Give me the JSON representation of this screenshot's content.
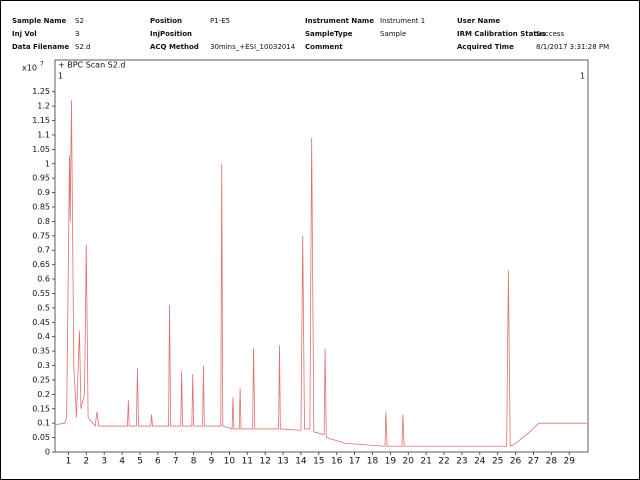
{
  "header": {
    "fields": [
      {
        "label": "Sample Name",
        "value": "S2"
      },
      {
        "label": "Position",
        "value": "P1-E5"
      },
      {
        "label": "Instrument Name",
        "value": "Instrument 1"
      },
      {
        "label": "User Name"
      },
      {
        "label": "Inj Vol",
        "value": "3"
      },
      {
        "label": "InjPosition"
      },
      {
        "label": "SampleType",
        "value": "Sample"
      },
      {
        "label": "IRM Calibration Status",
        "value": "Success"
      },
      {
        "label": "Data Filename",
        "value": "S2.d"
      },
      {
        "label": "ACQ Method",
        "value": "30mins_+ESI_10032014"
      },
      {
        "label": "Comment"
      },
      {
        "label": "Acquired Time",
        "value": "8/1/2017 3:31:28 PM"
      }
    ]
  },
  "chart_data": {
    "type": "line",
    "title": "+ BPC Scan S2.d",
    "ylabel": "x10",
    "ylabel_exponent": "7",
    "annotations": [
      "1",
      "1"
    ],
    "color": "#e07070",
    "x": [
      0.3,
      0.8,
      0.9,
      1.0,
      1.06,
      1.1,
      1.17,
      1.3,
      1.45,
      1.55,
      1.62,
      1.7,
      1.9,
      2.0,
      2.1,
      2.5,
      2.6,
      2.7,
      4.3,
      4.35,
      4.4,
      4.8,
      4.86,
      4.92,
      5.6,
      5.65,
      5.7,
      6.6,
      6.65,
      6.72,
      7.28,
      7.33,
      7.38,
      7.9,
      7.95,
      8.0,
      8.5,
      8.55,
      8.6,
      9.52,
      9.57,
      9.63,
      10.15,
      10.2,
      10.25,
      10.55,
      10.6,
      10.65,
      11.3,
      11.35,
      11.42,
      12.75,
      12.8,
      12.85,
      14.0,
      14.1,
      14.2,
      14.5,
      14.6,
      14.72,
      15.3,
      15.35,
      15.42,
      16.5,
      18.7,
      18.75,
      18.82,
      19.65,
      19.7,
      19.77,
      25.5,
      25.6,
      25.7,
      26.0,
      26.8,
      27.3,
      30.0
    ],
    "values": [
      0.095,
      0.1,
      0.12,
      0.67,
      1.03,
      0.8,
      1.22,
      0.3,
      0.12,
      0.3,
      0.42,
      0.15,
      0.2,
      0.72,
      0.12,
      0.09,
      0.14,
      0.09,
      0.09,
      0.18,
      0.09,
      0.09,
      0.29,
      0.09,
      0.09,
      0.13,
      0.09,
      0.09,
      0.51,
      0.09,
      0.09,
      0.28,
      0.09,
      0.09,
      0.27,
      0.09,
      0.09,
      0.3,
      0.09,
      0.09,
      1.0,
      0.09,
      0.08,
      0.19,
      0.08,
      0.08,
      0.22,
      0.08,
      0.08,
      0.36,
      0.08,
      0.08,
      0.37,
      0.08,
      0.075,
      0.75,
      0.08,
      0.08,
      1.09,
      0.07,
      0.06,
      0.36,
      0.05,
      0.03,
      0.02,
      0.14,
      0.02,
      0.02,
      0.13,
      0.02,
      0.02,
      0.63,
      0.02,
      0.03,
      0.07,
      0.1,
      0.1
    ],
    "xlim": [
      0.25,
      30.05
    ],
    "ylim": [
      0,
      1.36
    ],
    "xticks": [
      1,
      2,
      3,
      4,
      5,
      6,
      7,
      8,
      9,
      10,
      11,
      12,
      13,
      14,
      15,
      16,
      17,
      18,
      19,
      20,
      21,
      22,
      23,
      24,
      25,
      26,
      27,
      28,
      29
    ],
    "yticks": [
      0,
      0.05,
      0.1,
      0.15,
      0.2,
      0.25,
      0.3,
      0.35,
      0.4,
      0.45,
      0.5,
      0.55,
      0.6,
      0.65,
      0.7,
      0.75,
      0.8,
      0.85,
      0.9,
      0.95,
      1,
      1.05,
      1.1,
      1.15,
      1.2,
      1.25
    ]
  }
}
